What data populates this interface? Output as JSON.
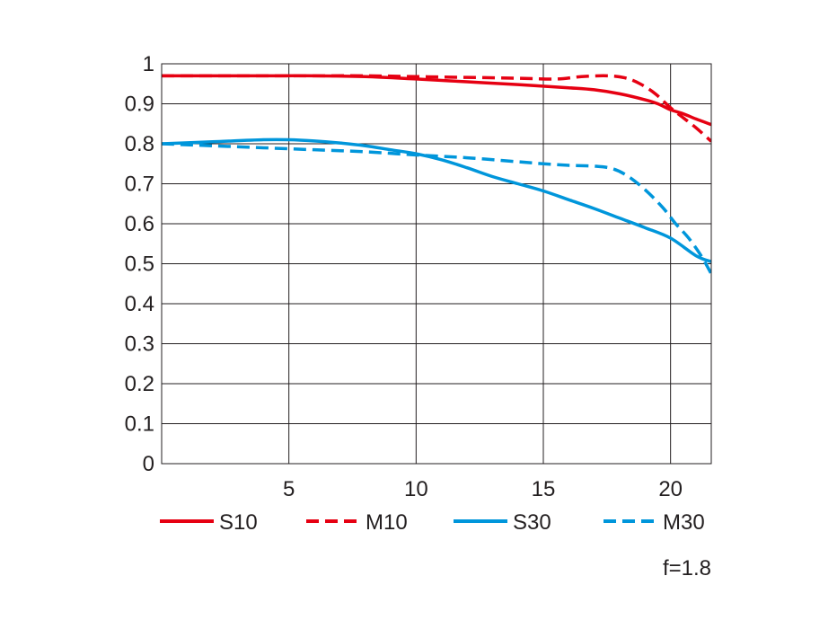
{
  "chart_data": {
    "type": "line",
    "title": "",
    "xlabel": "",
    "ylabel": "",
    "xlim": [
      0,
      21.6
    ],
    "ylim": [
      0,
      1
    ],
    "x_ticks": [
      5,
      10,
      15,
      20
    ],
    "x_tick_labels": [
      "5",
      "10",
      "15",
      "20"
    ],
    "y_ticks": [
      0,
      0.1,
      0.2,
      0.3,
      0.4,
      0.5,
      0.6,
      0.7,
      0.8,
      0.9,
      1
    ],
    "y_tick_labels": [
      "0",
      "0.1",
      "0.2",
      "0.3",
      "0.4",
      "0.5",
      "0.6",
      "0.7",
      "0.8",
      "0.9",
      "1"
    ],
    "grid": true,
    "legend_position": "bottom",
    "series": [
      {
        "name": "S10",
        "color": "#e60012",
        "dashed": false,
        "points": [
          [
            0,
            0.97
          ],
          [
            2,
            0.97
          ],
          [
            4,
            0.97
          ],
          [
            6,
            0.97
          ],
          [
            8,
            0.968
          ],
          [
            10,
            0.962
          ],
          [
            12,
            0.955
          ],
          [
            14,
            0.948
          ],
          [
            16,
            0.94
          ],
          [
            17,
            0.935
          ],
          [
            18,
            0.925
          ],
          [
            19,
            0.91
          ],
          [
            19.5,
            0.9
          ],
          [
            20,
            0.885
          ],
          [
            20.5,
            0.875
          ],
          [
            21,
            0.862
          ],
          [
            21.6,
            0.848
          ]
        ]
      },
      {
        "name": "M10",
        "color": "#e60012",
        "dashed": true,
        "points": [
          [
            0,
            0.97
          ],
          [
            2,
            0.97
          ],
          [
            4,
            0.97
          ],
          [
            6,
            0.97
          ],
          [
            8,
            0.97
          ],
          [
            10,
            0.968
          ],
          [
            12,
            0.966
          ],
          [
            14,
            0.964
          ],
          [
            15.5,
            0.962
          ],
          [
            16.5,
            0.968
          ],
          [
            17.5,
            0.97
          ],
          [
            18.2,
            0.965
          ],
          [
            18.8,
            0.95
          ],
          [
            19.4,
            0.925
          ],
          [
            20,
            0.89
          ],
          [
            20.5,
            0.865
          ],
          [
            21,
            0.84
          ],
          [
            21.6,
            0.806
          ]
        ]
      },
      {
        "name": "S30",
        "color": "#0096db",
        "dashed": false,
        "points": [
          [
            0,
            0.8
          ],
          [
            2,
            0.805
          ],
          [
            4,
            0.81
          ],
          [
            5,
            0.81
          ],
          [
            6,
            0.807
          ],
          [
            7,
            0.802
          ],
          [
            8,
            0.795
          ],
          [
            9,
            0.785
          ],
          [
            10,
            0.775
          ],
          [
            11,
            0.76
          ],
          [
            12,
            0.74
          ],
          [
            13,
            0.718
          ],
          [
            14,
            0.7
          ],
          [
            15,
            0.682
          ],
          [
            16,
            0.66
          ],
          [
            17,
            0.638
          ],
          [
            18,
            0.614
          ],
          [
            19,
            0.59
          ],
          [
            20,
            0.564
          ],
          [
            21,
            0.52
          ],
          [
            21.6,
            0.505
          ]
        ]
      },
      {
        "name": "M30",
        "color": "#0096db",
        "dashed": true,
        "points": [
          [
            0,
            0.8
          ],
          [
            2,
            0.795
          ],
          [
            4,
            0.79
          ],
          [
            6,
            0.785
          ],
          [
            8,
            0.78
          ],
          [
            10,
            0.772
          ],
          [
            12,
            0.765
          ],
          [
            14,
            0.755
          ],
          [
            15,
            0.75
          ],
          [
            16,
            0.746
          ],
          [
            17,
            0.744
          ],
          [
            17.7,
            0.738
          ],
          [
            18.3,
            0.72
          ],
          [
            19,
            0.685
          ],
          [
            19.7,
            0.64
          ],
          [
            20.2,
            0.6
          ],
          [
            20.7,
            0.565
          ],
          [
            21.2,
            0.52
          ],
          [
            21.6,
            0.475
          ]
        ]
      }
    ],
    "annotation": "f=1.8"
  }
}
